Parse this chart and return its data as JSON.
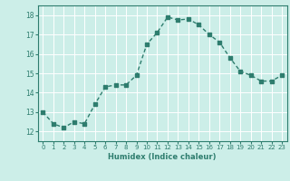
{
  "x": [
    0,
    1,
    2,
    3,
    4,
    5,
    6,
    7,
    8,
    9,
    10,
    11,
    12,
    13,
    14,
    15,
    16,
    17,
    18,
    19,
    20,
    21,
    22,
    23
  ],
  "y": [
    13.0,
    12.4,
    12.2,
    12.5,
    12.4,
    13.4,
    14.3,
    14.4,
    14.4,
    14.9,
    16.5,
    17.1,
    17.9,
    17.75,
    17.8,
    17.5,
    17.0,
    16.6,
    15.8,
    15.1,
    14.9,
    14.6,
    14.6,
    14.9
  ],
  "line_color": "#2e7d6e",
  "bg_color": "#cceee8",
  "grid_color": "#ffffff",
  "xlabel": "Humidex (Indice chaleur)",
  "ylim": [
    11.5,
    18.5
  ],
  "xlim": [
    -0.5,
    23.5
  ],
  "yticks": [
    12,
    13,
    14,
    15,
    16,
    17,
    18
  ],
  "xticks": [
    0,
    1,
    2,
    3,
    4,
    5,
    6,
    7,
    8,
    9,
    10,
    11,
    12,
    13,
    14,
    15,
    16,
    17,
    18,
    19,
    20,
    21,
    22,
    23
  ],
  "font_color": "#2e7d6e",
  "marker": "s",
  "markersize": 2.5,
  "linewidth": 1.0
}
